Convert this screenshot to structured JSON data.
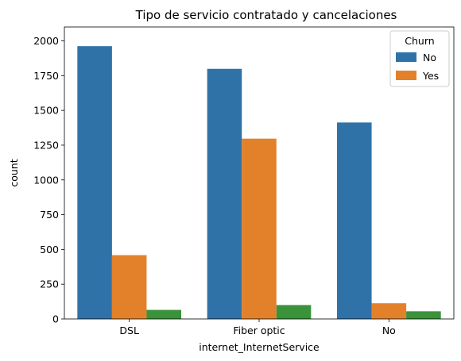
{
  "chart_data": {
    "type": "bar",
    "title": "Tipo de servicio contratado y cancelaciones",
    "xlabel": "internet_InternetService",
    "ylabel": "count",
    "categories": [
      "DSL",
      "Fiber optic",
      "No"
    ],
    "series": [
      {
        "name": "No",
        "color": "#2f72a8",
        "values": [
          1962,
          1799,
          1413
        ]
      },
      {
        "name": "Yes",
        "color": "#e3812b",
        "values": [
          459,
          1297,
          113
        ]
      },
      {
        "color": "#3a923a",
        "values": [
          65,
          100,
          55
        ]
      }
    ],
    "ylim": [
      0,
      2100
    ],
    "yticks": [
      0,
      250,
      500,
      750,
      1000,
      1250,
      1500,
      1750,
      2000
    ],
    "legend": {
      "title": "Churn",
      "placement": "top-right"
    },
    "grid": false
  }
}
